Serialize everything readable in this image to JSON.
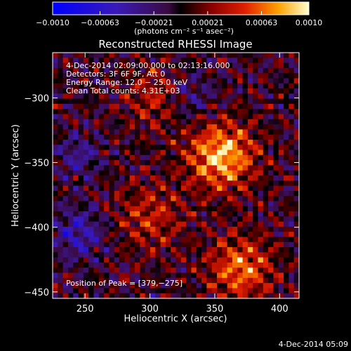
{
  "chart_data": {
    "type": "heatmap",
    "title": "Reconstructed RHESSI Image",
    "xlabel": "Heliocentric X (arcsec)",
    "ylabel": "Heliocentric Y (arcsec)",
    "xlim": [
      225,
      415
    ],
    "ylim": [
      -455,
      -265
    ],
    "x_ticks": [
      250,
      300,
      350,
      400
    ],
    "y_ticks": [
      -300,
      -350,
      -400,
      -450
    ],
    "x_tick_labels": [
      "250",
      "300",
      "350",
      "400"
    ],
    "y_tick_labels": [
      "−300",
      "−350",
      "−400",
      "−450"
    ],
    "colorbar": {
      "min": -0.001,
      "max": 0.001,
      "tick_values": [
        -0.001,
        -0.00063,
        -0.00021,
        0.00021,
        0.00063,
        0.001
      ],
      "tick_labels": [
        "−0.0010",
        "−0.00063",
        "−0.00021",
        "0.00021",
        "0.00063",
        "0.0010"
      ],
      "units_label": "(photons cm⁻² s⁻¹ asec⁻²)"
    },
    "annotations": [
      "4-Dec-2014 02:09:00.000 to 02:13:16.000",
      "Detectors: 3F 6F 9F, Att 0",
      "Energy Range: 12.0 − 25.0 keV",
      "Clean    Total counts: 4.31E+03"
    ],
    "peak_label": "Position of Peak = [379,−275]",
    "peak_position": [
      379,
      -275
    ],
    "sources": [
      {
        "x": 355,
        "y": -345,
        "amplitude": 1.0,
        "sigma": 18
      },
      {
        "x": 370,
        "y": -432,
        "amplitude": 0.75,
        "sigma": 17
      },
      {
        "x": 300,
        "y": -392,
        "amplitude": 0.45,
        "sigma": 18
      },
      {
        "x": 305,
        "y": -300,
        "amplitude": 0.45,
        "sigma": 16
      },
      {
        "x": 245,
        "y": -405,
        "amplitude": -0.55,
        "sigma": 14
      },
      {
        "x": 245,
        "y": -345,
        "amplitude": -0.4,
        "sigma": 12
      },
      {
        "x": 330,
        "y": -300,
        "amplitude": -0.35,
        "sigma": 14
      }
    ]
  },
  "footer_date": "4-Dec-2014 05:09"
}
